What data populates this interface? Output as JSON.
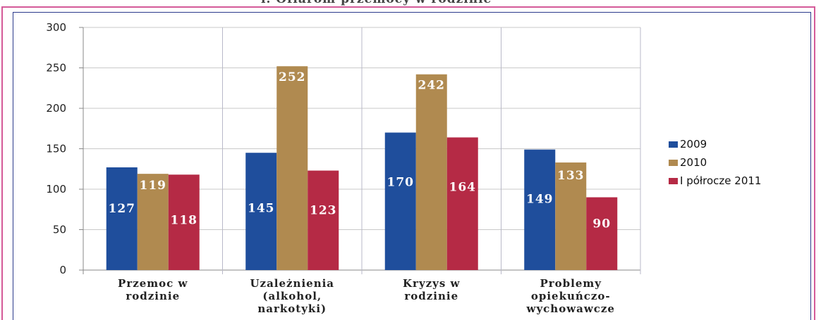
{
  "caption": "i. Ofiarom przemocy w rodzinie",
  "chart_data": {
    "type": "bar",
    "title": "",
    "xlabel": "",
    "ylabel": "",
    "categories": [
      [
        "Przemoc w",
        "rodzinie"
      ],
      [
        "Uzależnienia",
        "(alkohol,",
        "narkotyki)"
      ],
      [
        "Kryzys w",
        "rodzinie"
      ],
      [
        "Problemy",
        "opiekuńczo-",
        "wychowawcze"
      ]
    ],
    "series": [
      {
        "name": "2009",
        "color": "#1f4e9c",
        "values": [
          127,
          145,
          170,
          149
        ]
      },
      {
        "name": "2010",
        "color": "#b08a50",
        "values": [
          119,
          252,
          242,
          133
        ]
      },
      {
        "name": "I półrocze 2011",
        "color": "#b52a45",
        "values": [
          118,
          123,
          164,
          90
        ]
      }
    ],
    "ylim": [
      0,
      300
    ],
    "yticks": [
      0,
      50,
      100,
      150,
      200,
      250,
      300
    ],
    "grid": true,
    "legend_position": "right"
  }
}
